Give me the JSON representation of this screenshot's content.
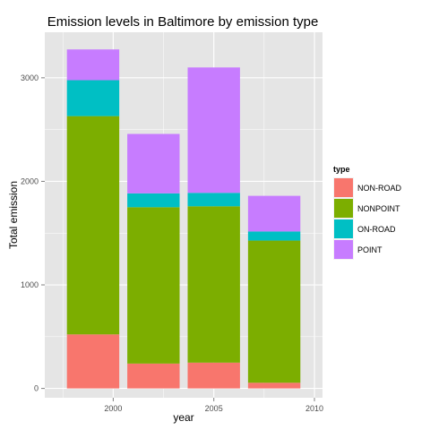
{
  "chart_data": {
    "type": "bar",
    "stacked": true,
    "title": "Emission levels in Baltimore by emission type",
    "xlabel": "year",
    "ylabel": "Total emission",
    "xlim": [
      1996.6,
      2010.4
    ],
    "ylim": [
      -90,
      3440
    ],
    "x_ticks": [
      2000,
      2005,
      2010
    ],
    "y_ticks": [
      0,
      1000,
      2000,
      3000
    ],
    "grid": true,
    "legend": {
      "title": "type",
      "position": "right",
      "entries": [
        "NON-ROAD",
        "NONPOINT",
        "ON-ROAD",
        "POINT"
      ]
    },
    "colors": {
      "NON-ROAD": "#f8766d",
      "NONPOINT": "#7cae00",
      "ON-ROAD": "#00bfc4",
      "POINT": "#c77cff"
    },
    "categories": [
      1999,
      2002,
      2005,
      2008
    ],
    "series": [
      {
        "name": "NON-ROAD",
        "values": [
          522,
          240,
          249,
          55
        ]
      },
      {
        "name": "NONPOINT",
        "values": [
          2108,
          1510,
          1510,
          1373
        ]
      },
      {
        "name": "ON-ROAD",
        "values": [
          347,
          134,
          130,
          88
        ]
      },
      {
        "name": "POINT",
        "values": [
          297,
          574,
          1211,
          344
        ]
      }
    ]
  }
}
